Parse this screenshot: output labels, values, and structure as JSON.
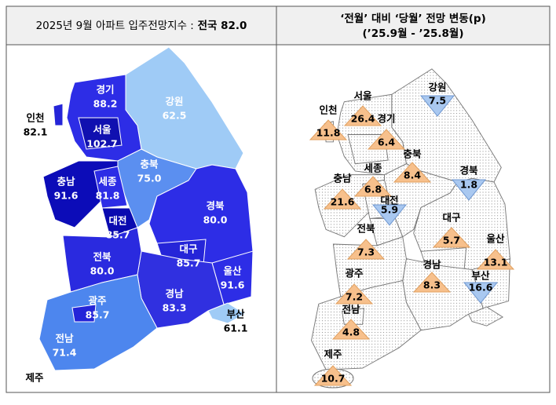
{
  "left": {
    "title_prefix": "2025년 9월 아파트 입주전망지수 :",
    "title_bold": "전국 82.0",
    "regions": [
      {
        "name": "경기",
        "value": "88.2"
      },
      {
        "name": "서울",
        "value": "102.7"
      },
      {
        "name": "인천",
        "value": "82.1"
      },
      {
        "name": "강원",
        "value": "62.5"
      },
      {
        "name": "충북",
        "value": "75.0"
      },
      {
        "name": "충남",
        "value": "91.6"
      },
      {
        "name": "세종",
        "value": "81.8"
      },
      {
        "name": "대전",
        "value": "85.7"
      },
      {
        "name": "경북",
        "value": "80.0"
      },
      {
        "name": "대구",
        "value": "85.7"
      },
      {
        "name": "울산",
        "value": "91.6"
      },
      {
        "name": "전북",
        "value": "80.0"
      },
      {
        "name": "경남",
        "value": "83.3"
      },
      {
        "name": "부산",
        "value": "61.1"
      },
      {
        "name": "광주",
        "value": "85.7"
      },
      {
        "name": "전남",
        "value": "71.4"
      }
    ],
    "jeju_label": "제주"
  },
  "right": {
    "title_line1": "‘전월’ 대비 ‘당월’ 전망 변동(p)",
    "title_line2": "(’25.9월  -  ’25.8월)",
    "regions": [
      {
        "name": "강원",
        "change": "7.5",
        "direction": "down"
      },
      {
        "name": "서울",
        "change": "26.4",
        "direction": "up"
      },
      {
        "name": "인천",
        "change": "11.8",
        "direction": "up"
      },
      {
        "name": "경기",
        "change": "6.4",
        "direction": "up"
      },
      {
        "name": "충북",
        "change": "8.4",
        "direction": "up"
      },
      {
        "name": "경북",
        "change": "1.8",
        "direction": "down"
      },
      {
        "name": "세종",
        "change": "6.8",
        "direction": "up"
      },
      {
        "name": "충남",
        "change": "21.6",
        "direction": "up"
      },
      {
        "name": "대전",
        "change": "5.9",
        "direction": "down"
      },
      {
        "name": "대구",
        "change": "5.7",
        "direction": "up"
      },
      {
        "name": "전북",
        "change": "7.3",
        "direction": "up"
      },
      {
        "name": "울산",
        "change": "13.1",
        "direction": "up"
      },
      {
        "name": "경남",
        "change": "8.3",
        "direction": "up"
      },
      {
        "name": "부산",
        "change": "16.6",
        "direction": "down"
      },
      {
        "name": "광주",
        "change": "7.2",
        "direction": "up"
      },
      {
        "name": "전남",
        "change": "4.8",
        "direction": "up"
      },
      {
        "name": "제주",
        "change": "10.7",
        "direction": "up"
      }
    ]
  }
}
